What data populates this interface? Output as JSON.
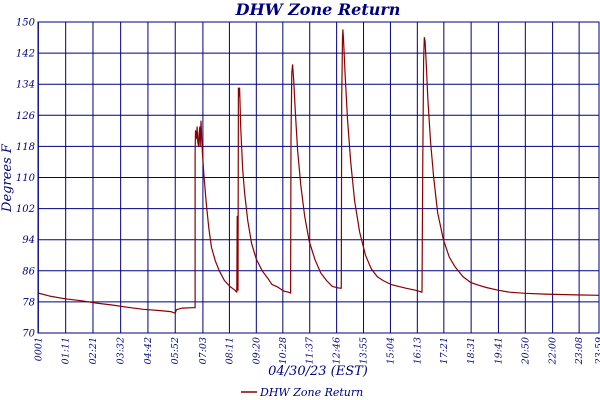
{
  "chart_data": {
    "type": "line",
    "title": "DHW Zone Return",
    "xlabel": "04/30/23 (EST)",
    "ylabel": "Degrees F",
    "ylim": [
      70,
      150
    ],
    "yticks": [
      70,
      78,
      86,
      94,
      102,
      110,
      118,
      126,
      134,
      142,
      150
    ],
    "xlim": [
      0,
      1439
    ],
    "xticks": [
      {
        "label": "0001",
        "min": 1
      },
      {
        "label": "01:11",
        "min": 71
      },
      {
        "label": "02:21",
        "min": 141
      },
      {
        "label": "03:32",
        "min": 212
      },
      {
        "label": "04:42",
        "min": 282
      },
      {
        "label": "05:52",
        "min": 352
      },
      {
        "label": "07:03",
        "min": 423
      },
      {
        "label": "08:11",
        "min": 491
      },
      {
        "label": "09:20",
        "min": 560
      },
      {
        "label": "10:28",
        "min": 628
      },
      {
        "label": "11:37",
        "min": 697
      },
      {
        "label": "12:46",
        "min": 766
      },
      {
        "label": "13:55",
        "min": 835
      },
      {
        "label": "15:04",
        "min": 904
      },
      {
        "label": "16:13",
        "min": 973
      },
      {
        "label": "17:21",
        "min": 1041
      },
      {
        "label": "18:31",
        "min": 1111
      },
      {
        "label": "19:41",
        "min": 1181
      },
      {
        "label": "20:50",
        "min": 1250
      },
      {
        "label": "22:00",
        "min": 1320
      },
      {
        "label": "23:08",
        "min": 1388
      },
      {
        "label": "23:59",
        "min": 1439
      }
    ],
    "grid": true,
    "legend_position": "bottom",
    "series": [
      {
        "name": "DHW Zone Return",
        "color": "#8b0000",
        "points": [
          [
            0,
            80.3
          ],
          [
            30,
            79.5
          ],
          [
            70,
            78.8
          ],
          [
            110,
            78.3
          ],
          [
            150,
            77.7
          ],
          [
            190,
            77.2
          ],
          [
            230,
            76.6
          ],
          [
            270,
            76.1
          ],
          [
            310,
            75.8
          ],
          [
            340,
            75.5
          ],
          [
            352,
            75.1
          ],
          [
            355,
            76.0
          ],
          [
            370,
            76.4
          ],
          [
            398,
            76.5
          ],
          [
            403,
            76.5
          ],
          [
            403,
            116
          ],
          [
            404,
            122
          ],
          [
            406,
            120
          ],
          [
            408,
            123
          ],
          [
            410,
            119
          ],
          [
            412,
            118
          ],
          [
            413,
            121
          ],
          [
            415,
            123
          ],
          [
            416,
            118
          ],
          [
            418,
            124.5
          ],
          [
            420,
            120
          ],
          [
            422,
            116
          ],
          [
            426,
            110
          ],
          [
            432,
            103
          ],
          [
            438,
            97
          ],
          [
            445,
            92
          ],
          [
            455,
            88.5
          ],
          [
            465,
            86
          ],
          [
            478,
            83.5
          ],
          [
            492,
            82
          ],
          [
            505,
            81
          ],
          [
            510,
            80.5
          ],
          [
            511,
            100
          ],
          [
            512,
            95
          ],
          [
            513,
            81
          ],
          [
            514,
            133
          ],
          [
            516,
            131
          ],
          [
            517,
            133
          ],
          [
            520,
            123
          ],
          [
            525,
            112
          ],
          [
            530,
            106
          ],
          [
            538,
            99
          ],
          [
            548,
            93
          ],
          [
            560,
            89
          ],
          [
            575,
            86
          ],
          [
            590,
            84
          ],
          [
            600,
            82.5
          ],
          [
            615,
            81.8
          ],
          [
            630,
            80.8
          ],
          [
            642,
            80.5
          ],
          [
            648,
            80.3
          ],
          [
            649,
            120
          ],
          [
            651,
            137
          ],
          [
            653,
            139
          ],
          [
            656,
            135
          ],
          [
            660,
            127
          ],
          [
            666,
            117
          ],
          [
            674,
            108
          ],
          [
            684,
            100
          ],
          [
            696,
            93.5
          ],
          [
            710,
            89
          ],
          [
            725,
            85.5
          ],
          [
            740,
            83.5
          ],
          [
            755,
            82
          ],
          [
            770,
            81.6
          ],
          [
            778,
            81.5
          ],
          [
            779,
            130
          ],
          [
            781,
            146
          ],
          [
            782,
            148
          ],
          [
            784,
            145
          ],
          [
            788,
            136
          ],
          [
            794,
            125
          ],
          [
            802,
            114
          ],
          [
            812,
            104
          ],
          [
            825,
            96
          ],
          [
            840,
            90
          ],
          [
            855,
            86.5
          ],
          [
            870,
            84.5
          ],
          [
            885,
            83.5
          ],
          [
            905,
            82.5
          ],
          [
            925,
            82
          ],
          [
            945,
            81.5
          ],
          [
            968,
            81
          ],
          [
            985,
            80.5
          ],
          [
            987,
            115
          ],
          [
            989,
            140
          ],
          [
            991,
            146
          ],
          [
            993,
            145
          ],
          [
            996,
            139
          ],
          [
            1000,
            130
          ],
          [
            1007,
            119
          ],
          [
            1015,
            110
          ],
          [
            1025,
            101
          ],
          [
            1040,
            94
          ],
          [
            1055,
            89.5
          ],
          [
            1070,
            87
          ],
          [
            1090,
            84.5
          ],
          [
            1110,
            83
          ],
          [
            1130,
            82.3
          ],
          [
            1150,
            81.7
          ],
          [
            1180,
            81
          ],
          [
            1210,
            80.5
          ],
          [
            1250,
            80.2
          ],
          [
            1300,
            80
          ],
          [
            1340,
            79.9
          ],
          [
            1380,
            79.8
          ],
          [
            1439,
            79.7
          ]
        ]
      }
    ]
  }
}
